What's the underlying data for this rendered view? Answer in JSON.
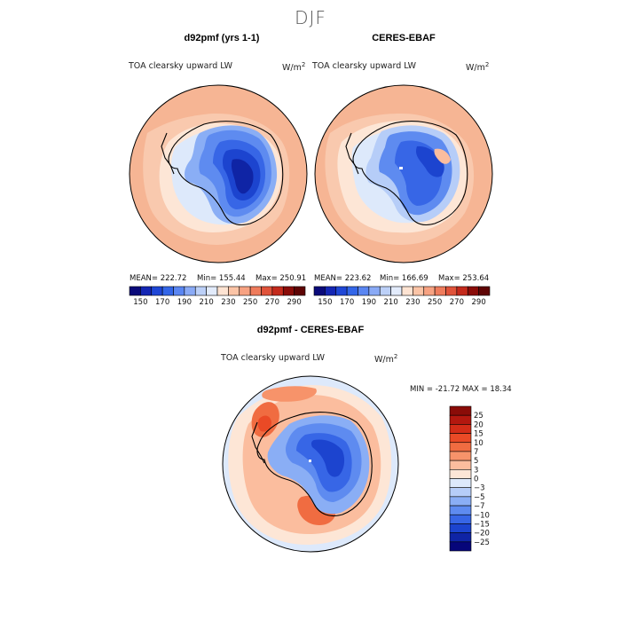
{
  "figure": {
    "title": "DJF"
  },
  "panels": [
    {
      "title": "d92pmf (yrs 1-1)",
      "variable": "TOA clearsky upward LW",
      "units_base": "W/m",
      "units_exp": "2",
      "stats": {
        "mean": "MEAN= 222.72",
        "min": "Min= 155.44",
        "max": "Max= 250.91"
      }
    },
    {
      "title": "CERES-EBAF",
      "variable": "TOA clearsky upward LW",
      "units_base": "W/m",
      "units_exp": "2",
      "stats": {
        "mean": "MEAN= 223.62",
        "min": "Min= 166.69",
        "max": "Max= 253.64"
      }
    },
    {
      "title": "d92pmf - CERES-EBAF",
      "variable": "TOA clearsky upward LW",
      "units_base": "W/m",
      "units_exp": "2",
      "stats": {
        "minmax": "MIN = -21.72 MAX =  18.34"
      }
    }
  ],
  "chart_data": [
    {
      "type": "heatmap",
      "projection": "south-polar-stereographic",
      "title": "d92pmf (yrs 1-1)",
      "subtitle": "TOA clearsky upward LW",
      "units": "W/m2",
      "mean": 222.72,
      "min": 155.44,
      "max": 250.91,
      "colorbar": {
        "orientation": "horizontal",
        "levels": [
          150,
          160,
          170,
          180,
          190,
          200,
          210,
          220,
          230,
          240,
          250,
          260,
          270,
          280,
          290
        ],
        "tick_labels": [
          "150",
          "170",
          "190",
          "210",
          "230",
          "250",
          "270",
          "290"
        ],
        "colors": [
          "#0a0a7a",
          "#1426b4",
          "#1f47d6",
          "#3366e8",
          "#5a86f2",
          "#8aaaf6",
          "#bcd0f8",
          "#e2ebfb",
          "#fde3d2",
          "#fbc4a6",
          "#f7a282",
          "#ef7c5c",
          "#e0533a",
          "#c42a1c",
          "#8a0c08",
          "#5e0404"
        ]
      }
    },
    {
      "type": "heatmap",
      "projection": "south-polar-stereographic",
      "title": "CERES-EBAF",
      "subtitle": "TOA clearsky upward LW",
      "units": "W/m2",
      "mean": 223.62,
      "min": 166.69,
      "max": 253.64,
      "colorbar": {
        "orientation": "horizontal",
        "levels": [
          150,
          160,
          170,
          180,
          190,
          200,
          210,
          220,
          230,
          240,
          250,
          260,
          270,
          280,
          290
        ],
        "tick_labels": [
          "150",
          "170",
          "190",
          "210",
          "230",
          "250",
          "270",
          "290"
        ],
        "colors": [
          "#0a0a7a",
          "#1426b4",
          "#1f47d6",
          "#3366e8",
          "#5a86f2",
          "#8aaaf6",
          "#bcd0f8",
          "#e2ebfb",
          "#fde3d2",
          "#fbc4a6",
          "#f7a282",
          "#ef7c5c",
          "#e0533a",
          "#c42a1c",
          "#8a0c08",
          "#5e0404"
        ]
      }
    },
    {
      "type": "heatmap",
      "projection": "south-polar-stereographic",
      "title": "d92pmf - CERES-EBAF",
      "subtitle": "TOA clearsky upward LW",
      "units": "W/m2",
      "min": -21.72,
      "max": 18.34,
      "colorbar": {
        "orientation": "vertical",
        "levels": [
          25,
          20,
          15,
          10,
          7,
          5,
          3,
          0,
          -3,
          -5,
          -7,
          -10,
          -15,
          -20,
          -25
        ],
        "tick_labels": [
          "25",
          "20",
          "15",
          "10",
          "7",
          "5",
          "3",
          "0",
          "−3",
          "−5",
          "−7",
          "−10",
          "−15",
          "−20",
          "−25"
        ],
        "colors": [
          "#8a0c08",
          "#b3180f",
          "#d42d18",
          "#ea4a26",
          "#f06c41",
          "#f7936a",
          "#fbbd9e",
          "#fde6d6",
          "#dde9fb",
          "#b6cdf8",
          "#8aaef5",
          "#5e8bf0",
          "#3766e6",
          "#1c44cf",
          "#0f24a5",
          "#06067a"
        ]
      }
    }
  ]
}
